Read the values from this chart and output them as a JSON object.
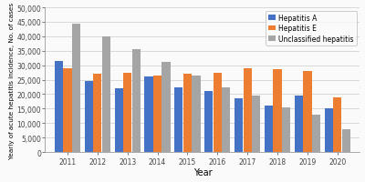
{
  "years": [
    2011,
    2012,
    2013,
    2014,
    2015,
    2016,
    2017,
    2018,
    2019,
    2020
  ],
  "hepatitis_a": [
    31500,
    24500,
    22000,
    26000,
    22500,
    21000,
    18500,
    16000,
    19500,
    15000
  ],
  "hepatitis_e": [
    29000,
    27000,
    27500,
    26500,
    27000,
    27500,
    29000,
    28500,
    28000,
    19000
  ],
  "unclassified": [
    44500,
    40000,
    35500,
    31000,
    26500,
    22500,
    19500,
    15500,
    13000,
    8000
  ],
  "colors": {
    "hepatitis_a": "#4472C4",
    "hepatitis_e": "#ED7D31",
    "unclassified": "#A5A5A5"
  },
  "legend_labels": [
    "Hepatitis A",
    "Hepatitis E",
    "Unclassified hepatitis"
  ],
  "xlabel": "Year",
  "ylabel": "Yearly of acute hepatitis incidence, No. of cases",
  "ylim": [
    0,
    50000
  ],
  "yticks": [
    0,
    5000,
    10000,
    15000,
    20000,
    25000,
    30000,
    35000,
    40000,
    45000,
    50000
  ],
  "ytick_labels": [
    "0",
    "5,000",
    "10,000",
    "15,000",
    "20,000",
    "25,000",
    "30,000",
    "35,000",
    "40,000",
    "45,000",
    "50,000"
  ],
  "bg_color": "#FAFAFA"
}
